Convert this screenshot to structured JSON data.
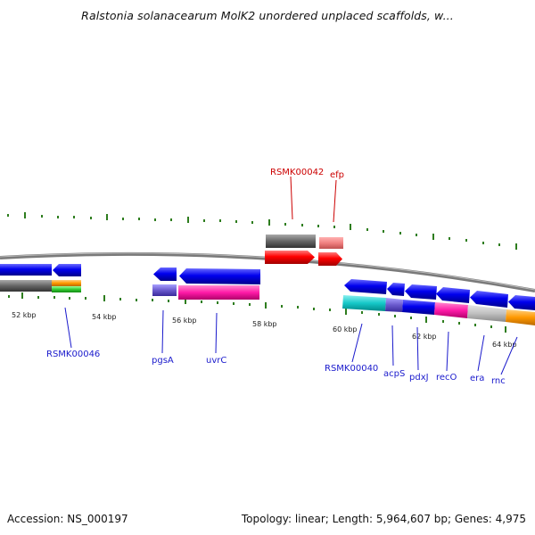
{
  "title": "Ralstonia solanacearum MolK2 unordered unplaced scaffolds, w...",
  "footer": {
    "accession": "Accession: NS_000197",
    "topology": "Topology: linear; Length: 5,964,607 bp; Genes: 4,975"
  },
  "colors": {
    "backbone": "#888888",
    "tick": "#2e7d1e",
    "forward_gene": "#0000ee",
    "highlight_gene": "#ff0000",
    "label_blue": "#1a1acc",
    "label_red": "#cc0000"
  },
  "scale_labels": [
    "52 kbp",
    "54 kbp",
    "56 kbp",
    "58 kbp",
    "60 kbp",
    "62 kbp",
    "64 kbp"
  ],
  "gene_labels_below": [
    "RSMK00046",
    "pgsA",
    "uvrC",
    "RSMK00040",
    "acpS",
    "pdxJ",
    "recO",
    "era",
    "rnc"
  ],
  "gene_labels_above": [
    "RSMK00042",
    "efp"
  ]
}
